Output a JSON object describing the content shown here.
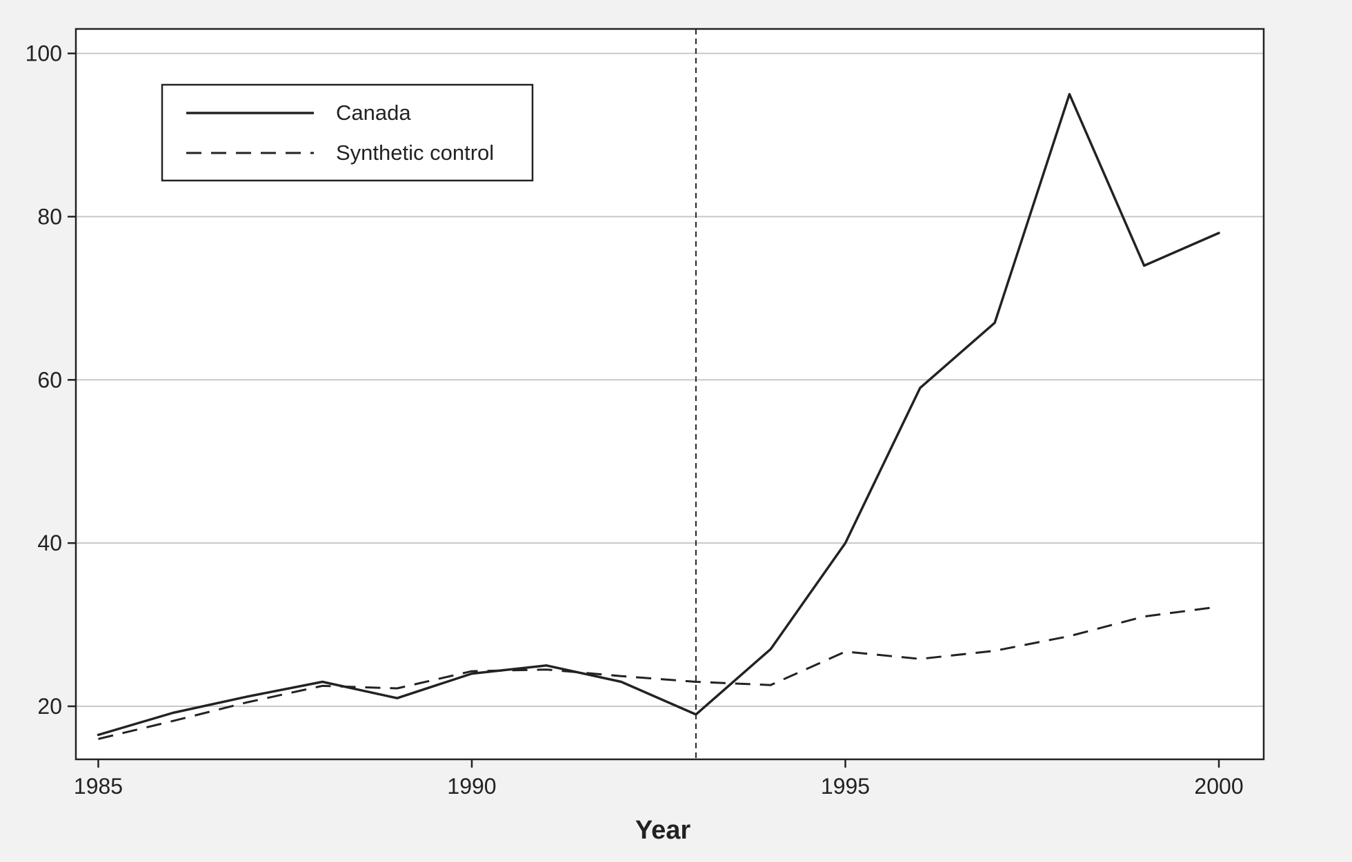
{
  "chart_data": {
    "type": "line",
    "title": "",
    "xlabel": "Year",
    "ylabel": "",
    "xlim": [
      1984.7,
      2000.6
    ],
    "ylim": [
      13.5,
      103
    ],
    "x_ticks": [
      1985,
      1990,
      1995,
      2000
    ],
    "y_ticks": [
      20,
      40,
      60,
      80,
      100
    ],
    "grid": "horizontal",
    "legend_position": "top-left",
    "vertical_line_x": 1993,
    "series": [
      {
        "name": "Canada",
        "style": "solid",
        "color": "#222222",
        "x": [
          1985,
          1986,
          1987,
          1988,
          1989,
          1990,
          1991,
          1992,
          1993,
          1994,
          1995,
          1996,
          1997,
          1998,
          1999,
          2000
        ],
        "y": [
          16.5,
          19.2,
          21.2,
          23.0,
          21.0,
          24.0,
          25.0,
          23.0,
          19.0,
          27.0,
          40.0,
          59.0,
          67.0,
          95.0,
          74.0,
          78.0
        ]
      },
      {
        "name": "Synthetic control",
        "style": "dashed",
        "color": "#222222",
        "x": [
          1985,
          1986,
          1987,
          1988,
          1989,
          1990,
          1991,
          1992,
          1993,
          1994,
          1995,
          1996,
          1997,
          1998,
          1999,
          2000
        ],
        "y": [
          16.0,
          18.2,
          20.5,
          22.5,
          22.2,
          24.3,
          24.5,
          23.7,
          23.0,
          22.6,
          26.7,
          25.8,
          26.8,
          28.6,
          31.0,
          32.2
        ]
      }
    ]
  }
}
